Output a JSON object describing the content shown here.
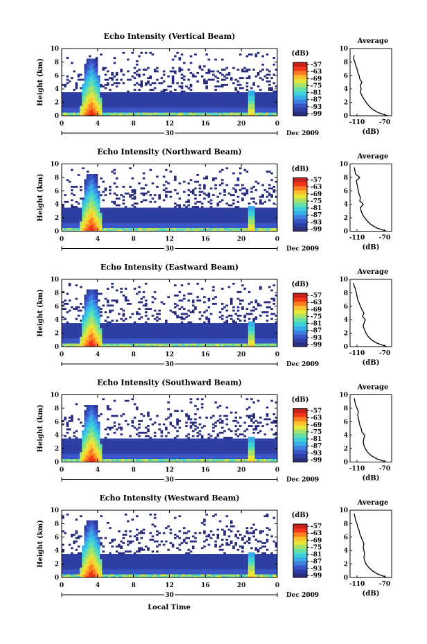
{
  "figure": {
    "xlabel": "Local Time",
    "date_label": "Dec 2009",
    "day_label": "30",
    "colorbar_unit": "(dB)",
    "average_title": "Average",
    "average_xlabel": "(dB)"
  },
  "colors": {
    "colormap": [
      "#2a2e7f",
      "#2f3ea3",
      "#3a56c6",
      "#3f7fe0",
      "#37aee8",
      "#3fd0d8",
      "#66e0a8",
      "#a7e26a",
      "#e7e63a",
      "#ffc02e",
      "#ff7d22",
      "#f0361b",
      "#c8201b"
    ],
    "curve": "#000000"
  },
  "chart_data": [
    {
      "type": "heatmap",
      "title": "Echo Intensity (Vertical Beam)",
      "ylabel": "Height (km)",
      "xlim": [
        0,
        24
      ],
      "ylim": [
        0,
        10
      ],
      "x_ticks": [
        "0",
        "4",
        "8",
        "12",
        "16",
        "20",
        "0"
      ],
      "y_ticks": [
        "0",
        "2",
        "4",
        "6",
        "8",
        "10"
      ],
      "colorbar": {
        "unit": "(dB)",
        "ticks": [
          "-57",
          "-63",
          "-69",
          "-75",
          "-81",
          "-87",
          "-93",
          "-99"
        ]
      },
      "average": {
        "title": "Average",
        "xlabel": "(dB)",
        "xlim": [
          -120,
          -60
        ],
        "x_ticks": [
          "-110",
          "-70"
        ],
        "y_ticks": [
          "0",
          "2",
          "4",
          "6",
          "8",
          "10"
        ],
        "heights": [
          0,
          0.5,
          1,
          1.5,
          2,
          2.5,
          3,
          3.5,
          4,
          4.5,
          5,
          5.5,
          6,
          6.5,
          7,
          7.5,
          8,
          8.5,
          9
        ],
        "db": [
          -66,
          -80,
          -88,
          -93,
          -97,
          -100,
          -103,
          -105,
          -104,
          -105,
          -103,
          -106,
          -107,
          -109,
          -110,
          -112,
          -113,
          -115,
          -114
        ]
      }
    },
    {
      "type": "heatmap",
      "title": "Echo Intensity (Northward Beam)",
      "ylabel": "Height (km)",
      "xlim": [
        0,
        24
      ],
      "ylim": [
        0,
        10
      ],
      "x_ticks": [
        "0",
        "4",
        "8",
        "12",
        "16",
        "20",
        "0"
      ],
      "y_ticks": [
        "0",
        "2",
        "4",
        "6",
        "8",
        "10"
      ],
      "colorbar": {
        "unit": "(dB)",
        "ticks": [
          "-57",
          "-63",
          "-69",
          "-75",
          "-81",
          "-87",
          "-93",
          "-99"
        ]
      },
      "average": {
        "title": "Average",
        "xlabel": "(dB)",
        "xlim": [
          -120,
          -60
        ],
        "x_ticks": [
          "-110",
          "-70"
        ],
        "y_ticks": [
          "0",
          "2",
          "4",
          "6",
          "8",
          "10"
        ],
        "heights": [
          0,
          0.5,
          1,
          1.5,
          2,
          2.5,
          3,
          3.5,
          4,
          4.5,
          5,
          5.5,
          6,
          6.5,
          7,
          7.5,
          8,
          8.5,
          9,
          9.5
        ],
        "db": [
          -68,
          -82,
          -90,
          -95,
          -99,
          -102,
          -104,
          -105,
          -101,
          -106,
          -105,
          -107,
          -108,
          -109,
          -110,
          -111,
          -106,
          -112,
          -113,
          -114
        ]
      }
    },
    {
      "type": "heatmap",
      "title": "Echo Intensity (Eastward Beam)",
      "ylabel": "Height (km)",
      "xlim": [
        0,
        24
      ],
      "ylim": [
        0,
        10
      ],
      "x_ticks": [
        "0",
        "4",
        "8",
        "12",
        "16",
        "20",
        "0"
      ],
      "y_ticks": [
        "0",
        "2",
        "4",
        "6",
        "8",
        "10"
      ],
      "colorbar": {
        "unit": "(dB)",
        "ticks": [
          "-57",
          "-63",
          "-69",
          "-75",
          "-81",
          "-87",
          "-93",
          "-99"
        ]
      },
      "average": {
        "title": "Average",
        "xlabel": "(dB)",
        "xlim": [
          -120,
          -60
        ],
        "x_ticks": [
          "-110",
          "-70"
        ],
        "y_ticks": [
          "0",
          "2",
          "4",
          "6",
          "8",
          "10"
        ],
        "heights": [
          0,
          0.5,
          1,
          1.5,
          2,
          2.5,
          3,
          3.5,
          4,
          4.5,
          5,
          5.5,
          6,
          6.5,
          7,
          7.5,
          8,
          8.5,
          9,
          9.5
        ],
        "db": [
          -67,
          -81,
          -89,
          -94,
          -97,
          -99,
          -101,
          -100,
          -98,
          -102,
          -100,
          -103,
          -105,
          -107,
          -109,
          -110,
          -111,
          -112,
          -114,
          -115
        ]
      }
    },
    {
      "type": "heatmap",
      "title": "Echo Intensity (Southward Beam)",
      "ylabel": "Height (km)",
      "xlim": [
        0,
        24
      ],
      "ylim": [
        0,
        10
      ],
      "x_ticks": [
        "0",
        "4",
        "8",
        "12",
        "16",
        "20",
        "0"
      ],
      "y_ticks": [
        "0",
        "2",
        "4",
        "6",
        "8",
        "10"
      ],
      "colorbar": {
        "unit": "(dB)",
        "ticks": [
          "-57",
          "-63",
          "-69",
          "-75",
          "-81",
          "-87",
          "-93",
          "-99"
        ]
      },
      "average": {
        "title": "Average",
        "xlabel": "(dB)",
        "xlim": [
          -120,
          -60
        ],
        "x_ticks": [
          "-110",
          "-70"
        ],
        "y_ticks": [
          "0",
          "2",
          "4",
          "6",
          "8",
          "10"
        ],
        "heights": [
          0,
          0.5,
          1,
          1.5,
          2,
          2.5,
          3,
          3.5,
          4,
          4.5,
          5,
          5.5,
          6,
          6.5,
          7,
          7.5,
          8,
          8.5,
          9,
          9.5
        ],
        "db": [
          -68,
          -82,
          -90,
          -95,
          -98,
          -100,
          -101,
          -100,
          -99,
          -103,
          -104,
          -106,
          -107,
          -108,
          -109,
          -108,
          -110,
          -112,
          -113,
          -114
        ]
      }
    },
    {
      "type": "heatmap",
      "title": "Echo Intensity (Westward Beam)",
      "ylabel": "Height (km)",
      "xlim": [
        0,
        24
      ],
      "ylim": [
        0,
        10
      ],
      "x_ticks": [
        "0",
        "4",
        "8",
        "12",
        "16",
        "20",
        "0"
      ],
      "y_ticks": [
        "0",
        "2",
        "4",
        "6",
        "8",
        "10"
      ],
      "colorbar": {
        "unit": "(dB)",
        "ticks": [
          "-57",
          "-63",
          "-69",
          "-75",
          "-81",
          "-87",
          "-93",
          "-99"
        ]
      },
      "average": {
        "title": "Average",
        "xlabel": "(dB)",
        "xlim": [
          -120,
          -60
        ],
        "x_ticks": [
          "-110",
          "-70"
        ],
        "y_ticks": [
          "0",
          "2",
          "4",
          "6",
          "8",
          "10"
        ],
        "heights": [
          0,
          0.5,
          1,
          1.5,
          2,
          2.5,
          3,
          3.5,
          4,
          4.5,
          5,
          5.5,
          6,
          6.5,
          7,
          7.5,
          8,
          8.5,
          9,
          9.5
        ],
        "db": [
          -67,
          -80,
          -88,
          -93,
          -97,
          -99,
          -100,
          -99,
          -100,
          -101,
          -100,
          -102,
          -104,
          -106,
          -107,
          -109,
          -110,
          -112,
          -113,
          -114
        ]
      }
    }
  ]
}
